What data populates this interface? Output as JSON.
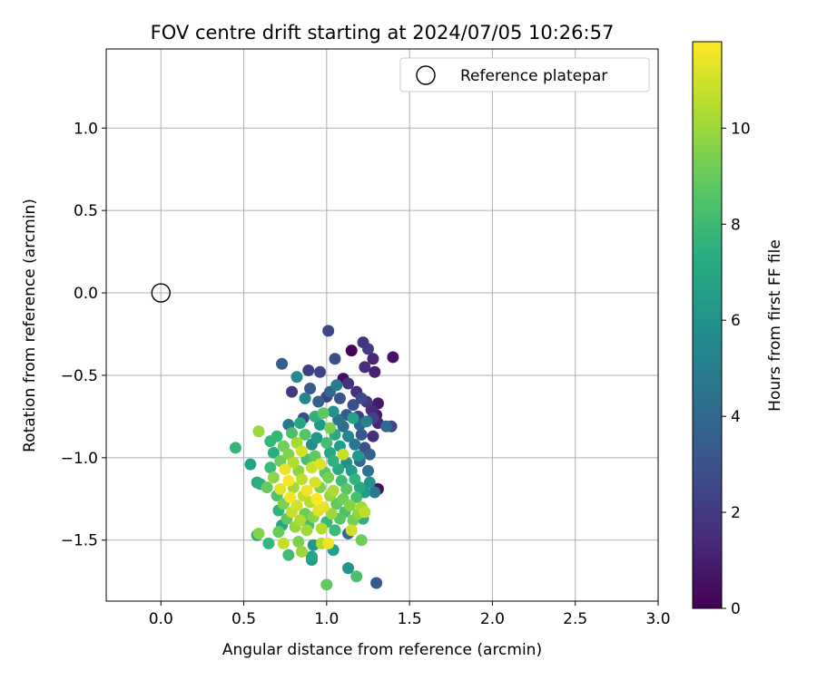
{
  "chart_data": {
    "type": "scatter",
    "title": "FOV centre drift starting at 2024/07/05 10:26:57",
    "xlabel": "Angular distance from reference (arcmin)",
    "ylabel": "Rotation from reference (arcmin)",
    "xlim": [
      -0.33,
      3.0
    ],
    "ylim": [
      -1.87,
      1.48
    ],
    "xticks": [
      0.0,
      0.5,
      1.0,
      1.5,
      2.0,
      2.5,
      3.0
    ],
    "xtick_labels": [
      "0.0",
      "0.5",
      "1.0",
      "1.5",
      "2.0",
      "2.5",
      "3.0"
    ],
    "yticks": [
      1.0,
      0.5,
      0.0,
      -0.5,
      -1.0,
      -1.5
    ],
    "ytick_labels": [
      "1.0",
      "0.5",
      "0.0",
      "−0.5",
      "−1.0",
      "−1.5"
    ],
    "grid": true,
    "legend": {
      "position": "top-right",
      "entries": [
        "Reference platepar"
      ]
    },
    "reference_point": {
      "x": 0.0,
      "y": 0.0
    },
    "colorbar": {
      "label": "Hours from first FF file",
      "colormap": "viridis",
      "range": [
        0,
        11.8
      ],
      "ticks": [
        0,
        2,
        4,
        6,
        8,
        10
      ],
      "tick_labels": [
        "0",
        "2",
        "4",
        "6",
        "8",
        "10"
      ]
    },
    "series": [
      {
        "values": [
          [
            1.01,
            -0.23,
            2.5
          ],
          [
            1.22,
            -0.3,
            1.8
          ],
          [
            1.15,
            -0.35,
            0.1
          ],
          [
            1.25,
            -0.34,
            2.0
          ],
          [
            1.4,
            -0.39,
            0.6
          ],
          [
            1.28,
            -0.4,
            1.2
          ],
          [
            0.73,
            -0.43,
            3.5
          ],
          [
            1.23,
            -0.45,
            1.5
          ],
          [
            1.05,
            -0.4,
            2.8
          ],
          [
            1.29,
            -0.48,
            1.0
          ],
          [
            0.89,
            -0.47,
            2.2
          ],
          [
            0.96,
            -0.48,
            2.4
          ],
          [
            1.1,
            -0.52,
            0.4
          ],
          [
            0.82,
            -0.51,
            5.6
          ],
          [
            1.13,
            -0.55,
            1.7
          ],
          [
            0.9,
            -0.58,
            3.2
          ],
          [
            0.79,
            -0.6,
            2.0
          ],
          [
            1.02,
            -0.6,
            4.0
          ],
          [
            1.06,
            -0.56,
            5.0
          ],
          [
            1.18,
            -0.6,
            1.6
          ],
          [
            1.0,
            -0.63,
            2.3
          ],
          [
            0.87,
            -0.64,
            5.4
          ],
          [
            1.08,
            -0.64,
            3.0
          ],
          [
            1.21,
            -0.64,
            2.6
          ],
          [
            1.24,
            -0.66,
            1.8
          ],
          [
            1.31,
            -0.67,
            0.8
          ],
          [
            0.95,
            -0.66,
            3.6
          ],
          [
            1.16,
            -0.68,
            2.9
          ],
          [
            1.27,
            -0.71,
            1.4
          ],
          [
            1.04,
            -0.72,
            6.0
          ],
          [
            0.98,
            -0.73,
            8.8
          ],
          [
            0.93,
            -0.75,
            7.5
          ],
          [
            1.12,
            -0.74,
            3.4
          ],
          [
            1.19,
            -0.75,
            2.1
          ],
          [
            1.3,
            -0.74,
            0.9
          ],
          [
            0.86,
            -0.76,
            2.7
          ],
          [
            1.07,
            -0.77,
            4.5
          ],
          [
            1.16,
            -0.76,
            6.8
          ],
          [
            1.24,
            -0.78,
            5.2
          ],
          [
            1.28,
            -0.76,
            2.4
          ],
          [
            0.77,
            -0.8,
            4.8
          ],
          [
            0.84,
            -0.79,
            7.0
          ],
          [
            0.96,
            -0.8,
            6.4
          ],
          [
            1.02,
            -0.82,
            9.4
          ],
          [
            1.1,
            -0.81,
            4.2
          ],
          [
            1.2,
            -0.8,
            3.8
          ],
          [
            1.31,
            -0.79,
            1.2
          ],
          [
            1.36,
            -0.81,
            4.0
          ],
          [
            1.39,
            -0.81,
            2.5
          ],
          [
            0.7,
            -0.87,
            7.8
          ],
          [
            0.79,
            -0.85,
            8.4
          ],
          [
            0.87,
            -0.86,
            8.6
          ],
          [
            0.94,
            -0.88,
            6.2
          ],
          [
            1.05,
            -0.86,
            7.2
          ],
          [
            1.13,
            -0.87,
            5.4
          ],
          [
            1.21,
            -0.86,
            3.2
          ],
          [
            1.28,
            -0.87,
            1.6
          ],
          [
            0.66,
            -0.9,
            7.9
          ],
          [
            0.74,
            -0.93,
            9.2
          ],
          [
            0.82,
            -0.91,
            10.2
          ],
          [
            0.91,
            -0.92,
            5.8
          ],
          [
            1.0,
            -0.91,
            8.2
          ],
          [
            1.08,
            -0.93,
            6.6
          ],
          [
            1.17,
            -0.92,
            4.6
          ],
          [
            1.23,
            -0.94,
            2.8
          ],
          [
            0.68,
            -0.97,
            7.4
          ],
          [
            0.77,
            -0.98,
            9.6
          ],
          [
            0.85,
            -0.96,
            11.0
          ],
          [
            0.93,
            -0.99,
            8.9
          ],
          [
            1.02,
            -0.97,
            7.0
          ],
          [
            1.1,
            -0.98,
            10.8
          ],
          [
            1.19,
            -0.99,
            6.2
          ],
          [
            1.26,
            -0.98,
            3.6
          ],
          [
            0.45,
            -0.94,
            7.8
          ],
          [
            0.72,
            -1.02,
            9.1
          ],
          [
            0.8,
            -1.03,
            10.4
          ],
          [
            0.88,
            -1.01,
            8.3
          ],
          [
            0.96,
            -1.04,
            11.2
          ],
          [
            1.04,
            -1.02,
            7.6
          ],
          [
            1.12,
            -1.03,
            5.9
          ],
          [
            1.2,
            -1.02,
            4.1
          ],
          [
            0.54,
            -1.04,
            6.8
          ],
          [
            0.66,
            -1.06,
            8.0
          ],
          [
            0.75,
            -1.07,
            11.4
          ],
          [
            0.83,
            -1.08,
            9.7
          ],
          [
            0.91,
            -1.06,
            10.9
          ],
          [
            0.99,
            -1.09,
            8.6
          ],
          [
            1.07,
            -1.07,
            7.3
          ],
          [
            1.15,
            -1.08,
            6.5
          ],
          [
            1.25,
            -1.08,
            4.4
          ],
          [
            0.58,
            -1.15,
            7.2
          ],
          [
            0.68,
            -1.12,
            9.8
          ],
          [
            0.77,
            -1.14,
            11.7
          ],
          [
            0.85,
            -1.13,
            10.6
          ],
          [
            0.93,
            -1.15,
            11.1
          ],
          [
            1.01,
            -1.12,
            9.3
          ],
          [
            1.09,
            -1.14,
            8.1
          ],
          [
            1.17,
            -1.13,
            7.7
          ],
          [
            1.26,
            -1.15,
            6.0
          ],
          [
            0.64,
            -1.18,
            9.0
          ],
          [
            0.72,
            -1.19,
            11.3
          ],
          [
            0.8,
            -1.18,
            10.1
          ],
          [
            0.88,
            -1.2,
            11.5
          ],
          [
            0.96,
            -1.18,
            9.5
          ],
          [
            1.04,
            -1.2,
            10.3
          ],
          [
            1.12,
            -1.19,
            8.7
          ],
          [
            1.2,
            -1.18,
            7.1
          ],
          [
            1.31,
            -1.19,
            0.5
          ],
          [
            1.29,
            -1.21,
            4.8
          ],
          [
            0.6,
            -1.16,
            7.4
          ],
          [
            0.7,
            -1.23,
            8.5
          ],
          [
            0.78,
            -1.24,
            11.6
          ],
          [
            0.86,
            -1.23,
            10.7
          ],
          [
            0.94,
            -1.25,
            11.8
          ],
          [
            1.02,
            -1.23,
            9.9
          ],
          [
            1.1,
            -1.25,
            9.2
          ],
          [
            1.18,
            -1.24,
            8.3
          ],
          [
            1.23,
            -1.21,
            6.4
          ],
          [
            0.74,
            -1.28,
            9.4
          ],
          [
            0.82,
            -1.29,
            11.0
          ],
          [
            0.9,
            -1.27,
            10.5
          ],
          [
            0.98,
            -1.3,
            11.4
          ],
          [
            1.06,
            -1.28,
            8.9
          ],
          [
            1.14,
            -1.29,
            9.6
          ],
          [
            1.21,
            -1.3,
            10.2
          ],
          [
            0.71,
            -1.32,
            7.6
          ],
          [
            0.79,
            -1.33,
            10.8
          ],
          [
            0.87,
            -1.34,
            9.1
          ],
          [
            0.95,
            -1.32,
            11.2
          ],
          [
            1.03,
            -1.34,
            10.0
          ],
          [
            1.11,
            -1.33,
            8.4
          ],
          [
            1.19,
            -1.34,
            9.8
          ],
          [
            1.23,
            -1.33,
            10.6
          ],
          [
            0.76,
            -1.37,
            8.8
          ],
          [
            0.84,
            -1.38,
            10.3
          ],
          [
            0.92,
            -1.36,
            9.7
          ],
          [
            1.0,
            -1.39,
            7.9
          ],
          [
            1.08,
            -1.37,
            8.6
          ],
          [
            1.16,
            -1.38,
            9.3
          ],
          [
            1.22,
            -1.37,
            7.5
          ],
          [
            0.73,
            -1.41,
            6.9
          ],
          [
            0.81,
            -1.42,
            9.9
          ],
          [
            0.89,
            -1.41,
            8.2
          ],
          [
            0.97,
            -1.43,
            10.4
          ],
          [
            1.05,
            -1.44,
            7.3
          ],
          [
            1.13,
            -1.46,
            3.9
          ],
          [
            1.15,
            -1.44,
            10.9
          ],
          [
            0.59,
            -1.46,
            9.6
          ],
          [
            0.58,
            -1.47,
            7.0
          ],
          [
            0.71,
            -1.45,
            9.0
          ],
          [
            0.88,
            -1.44,
            10.1
          ],
          [
            1.05,
            -1.44,
            8.0
          ],
          [
            0.74,
            -1.52,
            10.7
          ],
          [
            0.65,
            -1.52,
            7.8
          ],
          [
            0.83,
            -1.51,
            9.4
          ],
          [
            0.92,
            -1.53,
            6.3
          ],
          [
            0.97,
            -1.52,
            10.3
          ],
          [
            1.01,
            -1.52,
            11.5
          ],
          [
            1.04,
            -1.56,
            6.7
          ],
          [
            0.85,
            -1.57,
            10.0
          ],
          [
            1.21,
            -1.5,
            9.2
          ],
          [
            0.77,
            -1.59,
            8.1
          ],
          [
            0.91,
            -1.6,
            6.9
          ],
          [
            0.91,
            -1.62,
            6.5
          ],
          [
            1.13,
            -1.67,
            6.1
          ],
          [
            1.18,
            -1.72,
            8.4
          ],
          [
            1.3,
            -1.76,
            3.3
          ],
          [
            1.0,
            -1.77,
            8.9
          ],
          [
            0.59,
            -0.84,
            10.0
          ]
        ]
      }
    ]
  }
}
